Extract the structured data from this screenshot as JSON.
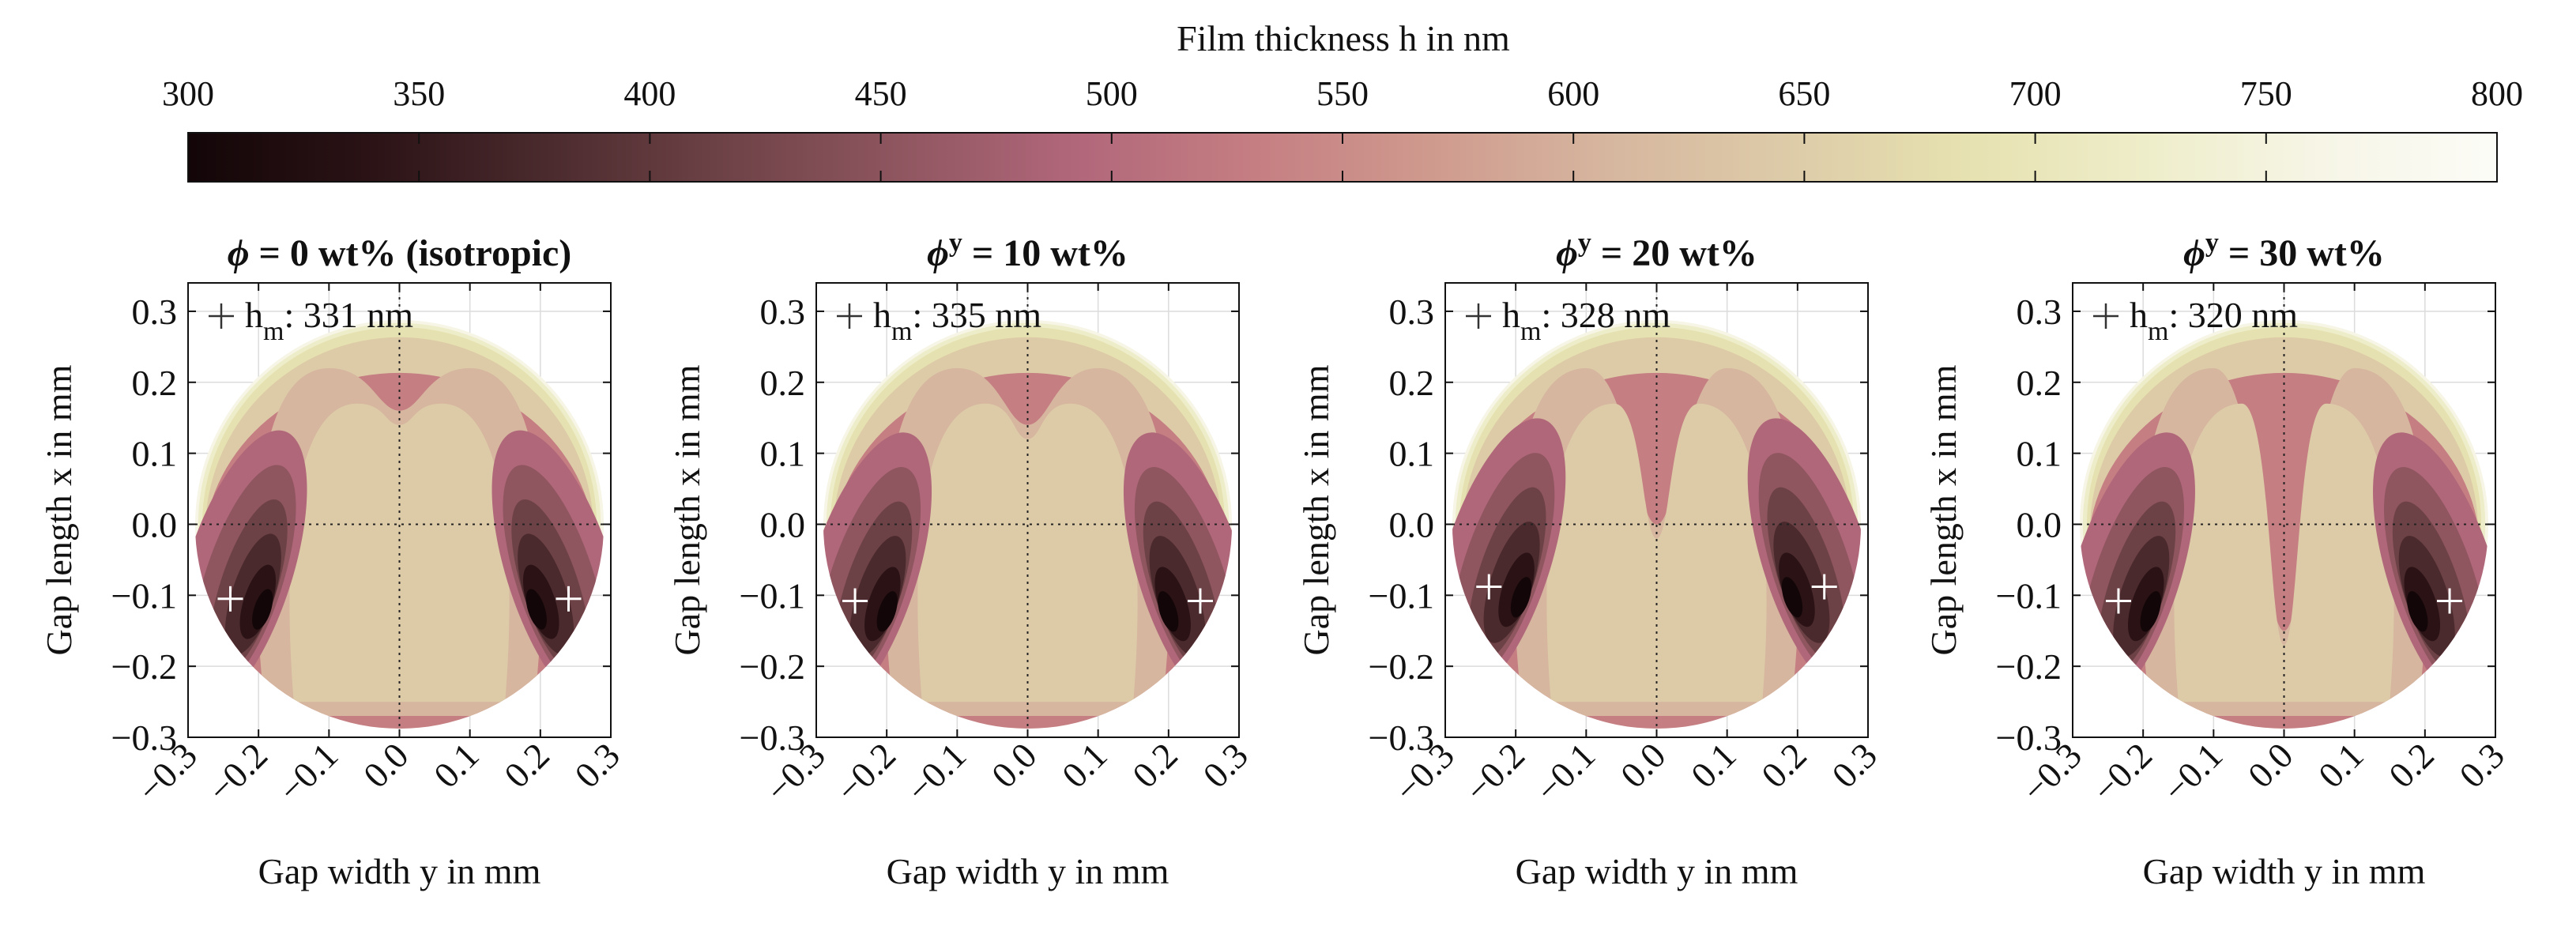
{
  "colorbar": {
    "title": "Film thickness h in nm",
    "min": 300,
    "max": 800,
    "ticks": [
      300,
      350,
      400,
      450,
      500,
      550,
      600,
      650,
      700,
      750,
      800
    ],
    "colors": [
      "#130608",
      "#2a1215",
      "#4a2a2d",
      "#6d4246",
      "#8f5660",
      "#b1677a",
      "#c57e82",
      "#cf9a8e",
      "#d6b69f",
      "#ddcba8",
      "#e6e1b0",
      "#eeedc9",
      "#f6f5e6",
      "#fcfcf7"
    ]
  },
  "chart_data": [
    {
      "type": "contour",
      "title": "ϕ = 0 wt% (isotropic)",
      "title_symbol": "ϕ",
      "title_sup": "",
      "title_rest": " = 0 wt% (isotropic)",
      "legend": {
        "symbol": "+",
        "label_main": "h",
        "label_sub": "m",
        "label_rest": ": 331 nm"
      },
      "h_min_nm": 331,
      "minima": [
        {
          "y": -0.24,
          "x": -0.105
        },
        {
          "y": 0.24,
          "x": -0.105
        }
      ],
      "center_dip": 0.16,
      "xlabel": "Gap width y in mm",
      "ylabel": "Gap length x in mm",
      "xlim": [
        -0.3,
        0.3
      ],
      "ylim": [
        -0.3,
        0.34
      ],
      "xticks": [
        "−0.3",
        "−0.2",
        "−0.1",
        "0.0",
        "0.1",
        "0.2",
        "0.3"
      ],
      "yticks": [
        "−0.3",
        "−0.2",
        "−0.1",
        "0.0",
        "0.1",
        "0.2",
        "0.3"
      ]
    },
    {
      "type": "contour",
      "title": "ϕ^y = 10 wt%",
      "title_symbol": "ϕ",
      "title_sup": "y",
      "title_rest": " = 10 wt%",
      "legend": {
        "symbol": "+",
        "label_main": "h",
        "label_sub": "m",
        "label_rest": ": 335 nm"
      },
      "h_min_nm": 335,
      "minima": [
        {
          "y": -0.245,
          "x": -0.108
        },
        {
          "y": 0.245,
          "x": -0.108
        }
      ],
      "center_dip": 0.14,
      "xlabel": "Gap width y in mm",
      "ylabel": "Gap length x in mm",
      "xlim": [
        -0.3,
        0.3
      ],
      "ylim": [
        -0.3,
        0.34
      ],
      "xticks": [
        "−0.3",
        "−0.2",
        "−0.1",
        "0.0",
        "0.1",
        "0.2",
        "0.3"
      ],
      "yticks": [
        "−0.3",
        "−0.2",
        "−0.1",
        "0.0",
        "0.1",
        "0.2",
        "0.3"
      ]
    },
    {
      "type": "contour",
      "title": "ϕ^y = 20 wt%",
      "title_symbol": "ϕ",
      "title_sup": "y",
      "title_rest": " = 20 wt%",
      "legend": {
        "symbol": "+",
        "label_main": "h",
        "label_sub": "m",
        "label_rest": ": 328 nm"
      },
      "h_min_nm": 328,
      "minima": [
        {
          "y": -0.238,
          "x": -0.088
        },
        {
          "y": 0.238,
          "x": -0.088
        }
      ],
      "center_dip": 0.0,
      "xlabel": "Gap width y in mm",
      "ylabel": "Gap length x in mm",
      "xlim": [
        -0.3,
        0.3
      ],
      "ylim": [
        -0.3,
        0.34
      ],
      "xticks": [
        "−0.3",
        "−0.2",
        "−0.1",
        "0.0",
        "0.1",
        "0.2",
        "0.3"
      ],
      "yticks": [
        "−0.3",
        "−0.2",
        "−0.1",
        "0.0",
        "0.1",
        "0.2",
        "0.3"
      ]
    },
    {
      "type": "contour",
      "title": "ϕ^y = 30 wt%",
      "title_symbol": "ϕ",
      "title_sup": "y",
      "title_rest": " = 30 wt%",
      "legend": {
        "symbol": "+",
        "label_main": "h",
        "label_sub": "m",
        "label_rest": ": 320 nm"
      },
      "h_min_nm": 320,
      "minima": [
        {
          "y": -0.235,
          "x": -0.108
        },
        {
          "y": 0.235,
          "x": -0.108
        }
      ],
      "center_dip": -0.15,
      "xlabel": "Gap width y in mm",
      "ylabel": "Gap length x in mm",
      "xlim": [
        -0.3,
        0.3
      ],
      "ylim": [
        -0.3,
        0.34
      ],
      "xticks": [
        "−0.3",
        "−0.2",
        "−0.1",
        "0.0",
        "0.1",
        "0.2",
        "0.3"
      ],
      "yticks": [
        "−0.3",
        "−0.2",
        "−0.1",
        "0.0",
        "0.1",
        "0.2",
        "0.3"
      ]
    }
  ]
}
